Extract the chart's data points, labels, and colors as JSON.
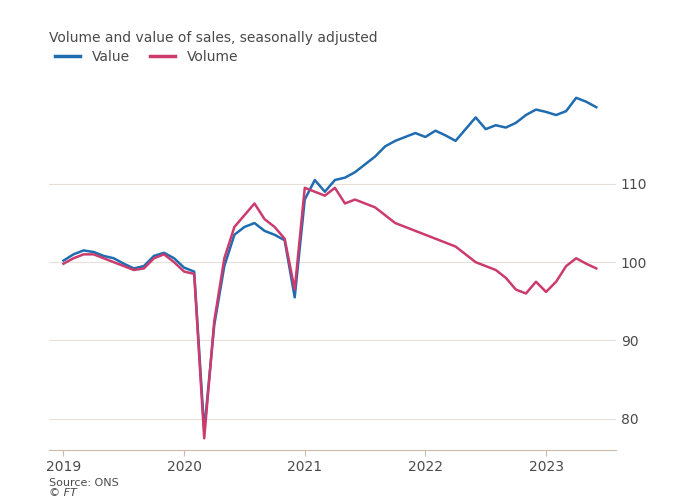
{
  "title": "Volume and value of sales, seasonally adjusted",
  "source": "Source: ONS",
  "footer": "© FT",
  "legend": [
    {
      "label": "Value",
      "color": "#1f6cb0"
    },
    {
      "label": "Volume",
      "color": "#cc3b6e"
    }
  ],
  "background_color": "#ffffff",
  "plot_bg_color": "#ffffff",
  "text_color": "#4a4a4a",
  "grid_color": "#e8e0d8",
  "ylim": [
    76,
    122
  ],
  "yticks": [
    80,
    90,
    100,
    110
  ],
  "value_color": "#1f6cb0",
  "volume_color": "#cc3b6e",
  "line_width": 1.8,
  "value_data": [
    100.2,
    101.0,
    101.5,
    101.3,
    100.8,
    100.5,
    99.8,
    99.2,
    99.5,
    100.8,
    101.2,
    100.5,
    99.3,
    98.8,
    78.5,
    92.0,
    99.5,
    103.5,
    104.5,
    105.0,
    104.0,
    103.5,
    102.8,
    95.5,
    108.0,
    110.5,
    109.0,
    110.5,
    110.8,
    111.5,
    112.5,
    113.5,
    114.8,
    115.5,
    116.0,
    116.5,
    116.0,
    116.8,
    116.2,
    115.5,
    117.0,
    118.5,
    117.0,
    117.5,
    117.2,
    117.8,
    118.8,
    119.5,
    119.2,
    118.8,
    119.3,
    121.0,
    120.5,
    119.8
  ],
  "volume_data": [
    99.8,
    100.5,
    101.0,
    101.0,
    100.5,
    100.0,
    99.5,
    99.0,
    99.2,
    100.5,
    101.0,
    100.0,
    98.8,
    98.5,
    77.5,
    92.5,
    100.5,
    104.5,
    106.0,
    107.5,
    105.5,
    104.5,
    103.0,
    96.5,
    109.5,
    109.0,
    108.5,
    109.5,
    107.5,
    108.0,
    107.5,
    107.0,
    106.0,
    105.0,
    104.5,
    104.0,
    103.5,
    103.0,
    102.5,
    102.0,
    101.0,
    100.0,
    99.5,
    99.0,
    98.0,
    96.5,
    96.0,
    97.5,
    96.2,
    97.5,
    99.5,
    100.5,
    99.8,
    99.2
  ]
}
